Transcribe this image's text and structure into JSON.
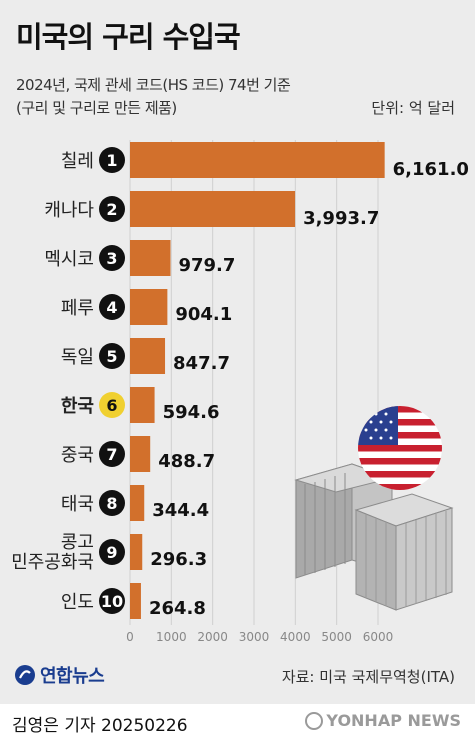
{
  "header": {
    "title": "미국의 구리 수입국",
    "subtitle_line1": "2024년, 국제 관세 코드(HS 코드) 74번 기준",
    "subtitle_line2": "(구리 및 구리로 만든 제품)",
    "unit": "단위: 억 달러"
  },
  "chart_data": {
    "type": "bar",
    "orientation": "horizontal",
    "categories": [
      "칠레",
      "캐나다",
      "멕시코",
      "페루",
      "독일",
      "한국",
      "중국",
      "태국",
      "콩고 민주공화국",
      "인도"
    ],
    "category_lines": [
      [
        "칠레"
      ],
      [
        "캐나다"
      ],
      [
        "멕시코"
      ],
      [
        "페루"
      ],
      [
        "독일"
      ],
      [
        "한국"
      ],
      [
        "중국"
      ],
      [
        "태국"
      ],
      [
        "콩고",
        "민주공화국"
      ],
      [
        "인도"
      ]
    ],
    "ranks": [
      "1",
      "2",
      "3",
      "4",
      "5",
      "6",
      "7",
      "8",
      "9",
      "10"
    ],
    "values": [
      6161.0,
      3993.7,
      979.7,
      904.1,
      847.7,
      594.6,
      488.7,
      344.4,
      296.3,
      264.8
    ],
    "value_labels": [
      "6,161.0",
      "3,993.7",
      "979.7",
      "904.1",
      "847.7",
      "594.6",
      "488.7",
      "344.4",
      "296.3",
      "264.8"
    ],
    "highlight": "한국",
    "xlim": [
      0,
      6000
    ],
    "xticks": [
      "0",
      "1000",
      "2000",
      "3000",
      "4000",
      "5000",
      "6000"
    ],
    "bar_color": "#d2702c",
    "highlight_color": "#f0d030",
    "rank_color": "#111111",
    "grid": true
  },
  "footer": {
    "logo_text": "연합뉴스",
    "source": "자료: 미국 국제무역청(ITA)",
    "byline": "김영은 기자  20250226",
    "watermark": "YONHAP NEWS"
  },
  "icons": [
    "usa-flag-icon",
    "shipping-container-icon",
    "yonhap-logo-icon"
  ]
}
